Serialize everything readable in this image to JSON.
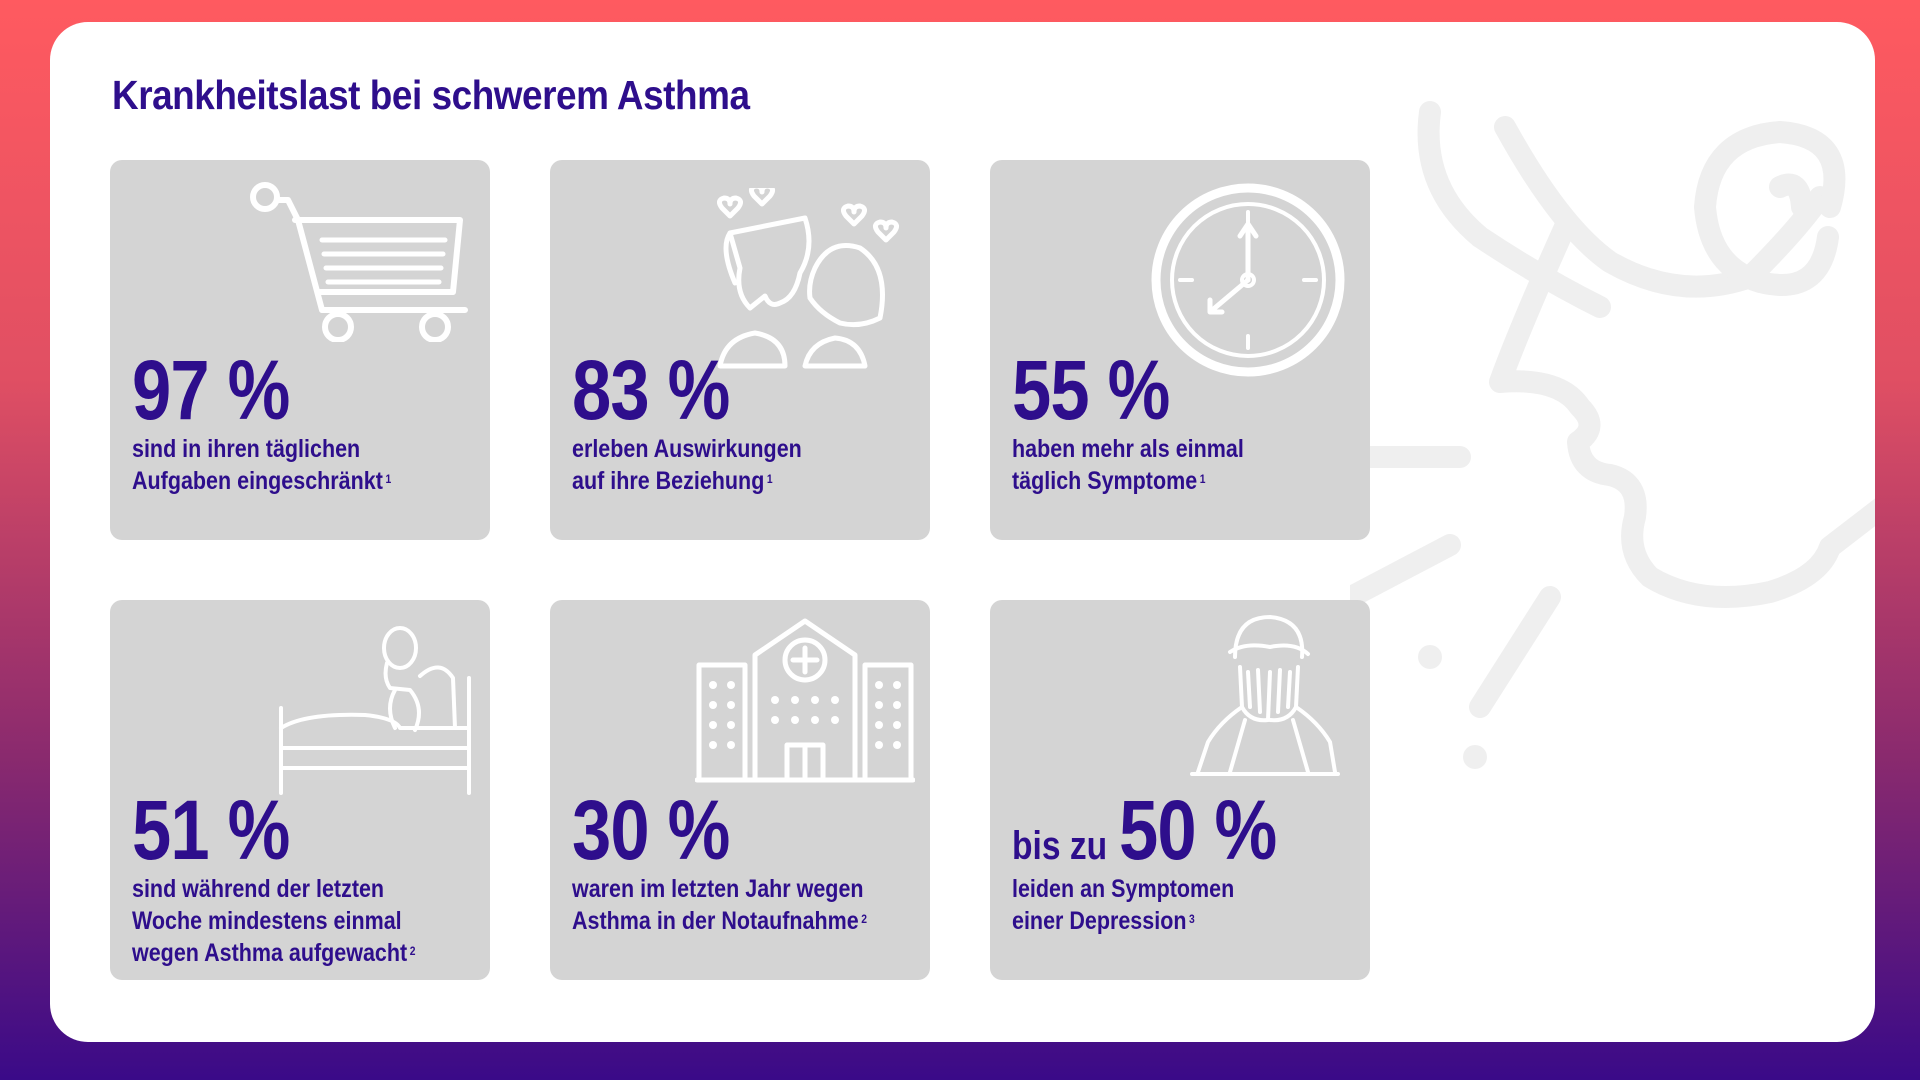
{
  "page": {
    "title": "Krankheitslast bei schwerem Asthma"
  },
  "tiles": [
    {
      "prefix": "",
      "value": "97 %",
      "lines": [
        "sind in ihren täglichen",
        "Aufgaben eingeschränkt"
      ],
      "ref": "1",
      "icon": "shopping-cart-icon"
    },
    {
      "prefix": "",
      "value": "83 %",
      "lines": [
        "erleben Auswirkungen",
        "auf ihre Beziehung"
      ],
      "ref": "1",
      "icon": "couple-kiss-icon"
    },
    {
      "prefix": "",
      "value": "55 %",
      "lines": [
        "haben mehr als einmal",
        "täglich Symptome"
      ],
      "ref": "1",
      "icon": "clock-icon"
    },
    {
      "prefix": "",
      "value": "51 %",
      "lines": [
        "sind während der letzten",
        "Woche mindestens einmal",
        "wegen Asthma aufgewacht"
      ],
      "ref": "2",
      "icon": "bed-person-icon"
    },
    {
      "prefix": "",
      "value": "30 %",
      "lines": [
        "waren im letzten Jahr wegen",
        "Asthma in der Notaufnahme"
      ],
      "ref": "2",
      "icon": "hospital-icon"
    },
    {
      "prefix": "bis zu",
      "value": "50 %",
      "lines": [
        "leiden an Symptomen",
        "einer Depression"
      ],
      "ref": "3",
      "icon": "face-in-hands-icon"
    }
  ],
  "colors": {
    "accent": "#2e0e8c",
    "tile": "#d4d4d4",
    "icon": "#ffffff"
  }
}
